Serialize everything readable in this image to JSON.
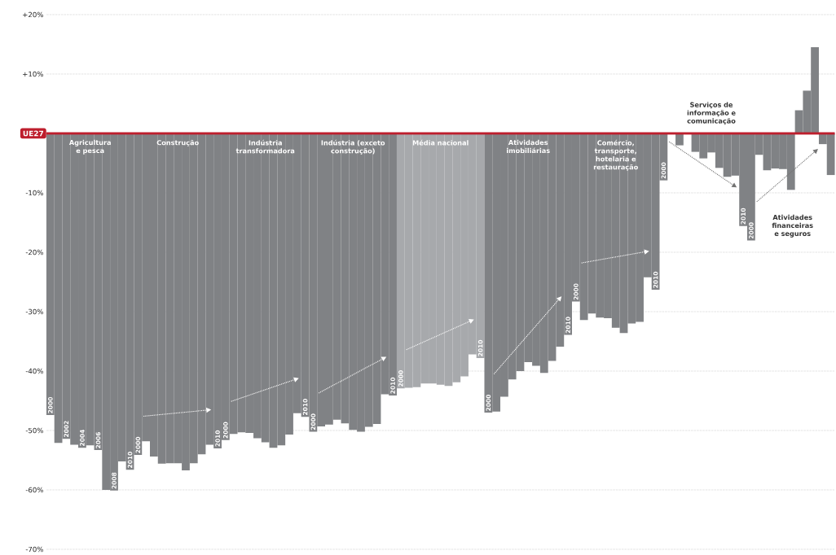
{
  "chart_data": {
    "type": "bar",
    "categories": [
      "2000",
      null,
      "2002",
      null,
      "2004",
      null,
      "2006",
      null,
      "2008",
      null,
      "2010",
      "2000",
      null,
      null,
      null,
      null,
      null,
      null,
      null,
      null,
      null,
      "2010",
      "2000",
      null,
      null,
      null,
      null,
      null,
      null,
      null,
      null,
      null,
      "2010",
      "2000",
      null,
      null,
      null,
      null,
      null,
      null,
      null,
      null,
      null,
      "2010",
      "2000",
      null,
      null,
      null,
      null,
      null,
      null,
      null,
      null,
      null,
      "2010",
      "2000",
      null,
      null,
      null,
      null,
      null,
      null,
      null,
      null,
      null,
      "2010",
      "2000",
      null,
      null,
      null,
      null,
      null,
      null,
      null,
      null,
      null,
      "2010",
      "2000",
      null,
      null,
      null,
      null,
      null,
      null,
      null,
      null,
      null,
      "2010",
      "2000",
      null,
      null,
      null,
      null,
      null,
      null,
      null,
      null,
      null,
      null
    ],
    "values": [
      -47.4,
      -52.1,
      -51.4,
      -52.4,
      -52.9,
      -52.5,
      -53.3,
      -60.0,
      -60.1,
      -55.2,
      -56.6,
      -54.1,
      -51.8,
      -54.4,
      -55.6,
      -55.5,
      -55.5,
      -56.7,
      -55.5,
      -54.0,
      -52.4,
      -53.0,
      -51.6,
      -50.6,
      -50.3,
      -50.4,
      -51.3,
      -52.0,
      -52.9,
      -52.5,
      -50.7,
      -47.1,
      -47.7,
      -50.2,
      -49.3,
      -49.0,
      -48.2,
      -48.8,
      -49.9,
      -50.2,
      -49.4,
      -48.9,
      -43.9,
      -44.1,
      -42.9,
      -42.8,
      -42.7,
      -42.1,
      -42.1,
      -42.3,
      -42.5,
      -41.9,
      -40.9,
      -37.2,
      -37.8,
      -47.0,
      -46.8,
      -44.3,
      -41.4,
      -40.0,
      -38.5,
      -39.1,
      -40.3,
      -38.3,
      -35.9,
      -33.9,
      -28.3,
      -31.4,
      -30.3,
      -31.0,
      -31.1,
      -32.7,
      -33.6,
      -32.0,
      -31.7,
      -24.2,
      -26.3,
      -7.9,
      0,
      -2.0,
      0,
      -3.1,
      -4.2,
      -3.2,
      -5.8,
      -7.3,
      -7.1,
      -15.6,
      -18.0,
      -3.6,
      -6.2,
      -5.9,
      -6.0,
      -9.5,
      3.9,
      7.2,
      14.5,
      -1.8,
      -7.0
    ],
    "colors": [
      "#808285",
      "#808285",
      "#808285",
      "#808285",
      "#808285",
      "#808285",
      "#808285",
      "#808285",
      "#808285",
      "#808285",
      "#808285",
      "#808285",
      "#808285",
      "#808285",
      "#808285",
      "#808285",
      "#808285",
      "#808285",
      "#808285",
      "#808285",
      "#808285",
      "#808285",
      "#808285",
      "#808285",
      "#808285",
      "#808285",
      "#808285",
      "#808285",
      "#808285",
      "#808285",
      "#808285",
      "#808285",
      "#808285",
      "#808285",
      "#808285",
      "#808285",
      "#808285",
      "#808285",
      "#808285",
      "#808285",
      "#808285",
      "#808285",
      "#808285",
      "#808285",
      "#a7a9ac",
      "#a7a9ac",
      "#a7a9ac",
      "#a7a9ac",
      "#a7a9ac",
      "#a7a9ac",
      "#a7a9ac",
      "#a7a9ac",
      "#a7a9ac",
      "#a7a9ac",
      "#a7a9ac",
      "#808285",
      "#808285",
      "#808285",
      "#808285",
      "#808285",
      "#808285",
      "#808285",
      "#808285",
      "#808285",
      "#808285",
      "#808285",
      "#808285",
      "#808285",
      "#808285",
      "#808285",
      "#808285",
      "#808285",
      "#808285",
      "#808285",
      "#808285",
      "#808285",
      "#808285",
      "#808285",
      "#808285",
      "#808285",
      "#808285",
      "#808285",
      "#808285",
      "#808285",
      "#808285",
      "#808285",
      "#808285",
      "#808285",
      "#808285",
      "#808285",
      "#808285",
      "#808285",
      "#808285",
      "#808285",
      "#808285",
      "#808285",
      "#808285",
      "#808285",
      "#808285"
    ],
    "ylim": [
      -70,
      20
    ],
    "yticks": [
      {
        "value": 20,
        "label": "+20%"
      },
      {
        "value": 10,
        "label": "+10%"
      },
      {
        "value": -10,
        "label": "-10%"
      },
      {
        "value": -20,
        "label": "-20%"
      },
      {
        "value": -30,
        "label": "-30%"
      },
      {
        "value": -40,
        "label": "-40%"
      },
      {
        "value": -50,
        "label": "-50%"
      },
      {
        "value": -60,
        "label": "-60%"
      },
      {
        "value": -70,
        "label": "-70%"
      }
    ],
    "grid": "y",
    "ref_lines": [
      {
        "axis": "y",
        "value": 0,
        "label": "UE27",
        "color": "#be1e2d"
      }
    ],
    "annotations": [
      "Agricultura e pesca",
      "Construção",
      "Indústria transformadora",
      "Indústria (exceto construção)",
      "Média nacional",
      "Atividades imobiliárias",
      "Comércio, transporte, hotelaria e restauração",
      "Serviços de informação e comunicação",
      "Atividades financeiras e seguros"
    ]
  }
}
